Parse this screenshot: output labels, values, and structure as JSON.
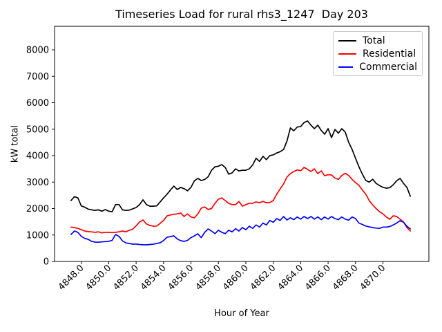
{
  "chart_data": {
    "type": "line",
    "title": "Timeseries Load for rural rhs3_1247  Day 203",
    "xlabel": "Hour of Year",
    "ylabel": "kW total",
    "grid": false,
    "legend_position": "upper right",
    "xlim": [
      4846.05,
      4873.35
    ],
    "ylim": [
      0,
      8890
    ],
    "x_ticks": [
      4848,
      4850,
      4852,
      4854,
      4856,
      4858,
      4860,
      4862,
      4864,
      4866,
      4868,
      4870
    ],
    "x_tick_labels": [
      "4848.0",
      "4850.0",
      "4852.0",
      "4854.0",
      "4856.0",
      "4858.0",
      "4860.0",
      "4862.0",
      "4864.0",
      "4866.0",
      "4868.0",
      "4870.0"
    ],
    "y_ticks": [
      0,
      1000,
      2000,
      3000,
      4000,
      5000,
      6000,
      7000,
      8000
    ],
    "y_tick_labels": [
      "0",
      "1000",
      "2000",
      "3000",
      "4000",
      "5000",
      "6000",
      "7000",
      "8000"
    ],
    "x_start": 4847.25,
    "x_step": 0.25,
    "series": [
      {
        "name": "Total",
        "color": "#000000",
        "values": [
          2300,
          2450,
          2400,
          2100,
          2050,
          1980,
          1950,
          1930,
          1950,
          1900,
          1960,
          1900,
          1880,
          2150,
          2150,
          1950,
          1930,
          1940,
          1990,
          2040,
          2150,
          2330,
          2150,
          2090,
          2090,
          2100,
          2250,
          2400,
          2540,
          2700,
          2850,
          2720,
          2800,
          2750,
          2670,
          2800,
          3050,
          3140,
          3060,
          3100,
          3200,
          3450,
          3580,
          3600,
          3660,
          3550,
          3300,
          3350,
          3500,
          3420,
          3450,
          3450,
          3500,
          3650,
          3900,
          3780,
          3975,
          3850,
          4000,
          4030,
          4100,
          4150,
          4230,
          4550,
          5050,
          4940,
          5080,
          5100,
          5250,
          5310,
          5150,
          5020,
          5150,
          4950,
          4810,
          5020,
          4680,
          4990,
          4850,
          5020,
          4890,
          4500,
          4235,
          3900,
          3580,
          3300,
          3060,
          3000,
          3110,
          2950,
          2870,
          2800,
          2770,
          2790,
          2900,
          3050,
          3140,
          2950,
          2800,
          2460
        ]
      },
      {
        "name": "Residential",
        "color": "#ff0000",
        "values": [
          1300,
          1280,
          1250,
          1200,
          1150,
          1130,
          1120,
          1100,
          1120,
          1080,
          1100,
          1100,
          1090,
          1100,
          1120,
          1150,
          1120,
          1180,
          1220,
          1350,
          1490,
          1570,
          1420,
          1360,
          1330,
          1340,
          1440,
          1550,
          1720,
          1760,
          1780,
          1800,
          1830,
          1700,
          1800,
          1680,
          1650,
          1800,
          2010,
          2060,
          1960,
          2000,
          2200,
          2350,
          2400,
          2300,
          2200,
          2150,
          2150,
          2270,
          2090,
          2150,
          2200,
          2200,
          2250,
          2220,
          2270,
          2220,
          2230,
          2300,
          2540,
          2740,
          2930,
          3190,
          3320,
          3400,
          3460,
          3430,
          3555,
          3480,
          3400,
          3500,
          3320,
          3425,
          3240,
          3280,
          3270,
          3150,
          3100,
          3250,
          3330,
          3250,
          3100,
          2980,
          2880,
          2700,
          2540,
          2300,
          2140,
          2000,
          1880,
          1800,
          1680,
          1595,
          1725,
          1700,
          1600,
          1490,
          1280,
          1150
        ]
      },
      {
        "name": "Commercial",
        "color": "#0000ff",
        "values": [
          1020,
          1150,
          1100,
          950,
          870,
          837,
          760,
          732,
          730,
          740,
          750,
          760,
          800,
          1020,
          950,
          780,
          700,
          680,
          653,
          660,
          640,
          630,
          627,
          640,
          650,
          680,
          706,
          790,
          915,
          940,
          967,
          850,
          784,
          758,
          800,
          900,
          967,
          1046,
          900,
          1100,
          1230,
          1150,
          1050,
          1180,
          1100,
          1050,
          1180,
          1120,
          1240,
          1150,
          1280,
          1200,
          1330,
          1250,
          1380,
          1300,
          1450,
          1380,
          1550,
          1480,
          1620,
          1550,
          1700,
          1570,
          1650,
          1580,
          1680,
          1600,
          1700,
          1620,
          1700,
          1600,
          1680,
          1580,
          1680,
          1600,
          1700,
          1620,
          1580,
          1680,
          1600,
          1560,
          1680,
          1620,
          1450,
          1400,
          1340,
          1310,
          1280,
          1260,
          1250,
          1300,
          1300,
          1320,
          1380,
          1450,
          1540,
          1480,
          1330,
          1230
        ]
      }
    ]
  }
}
